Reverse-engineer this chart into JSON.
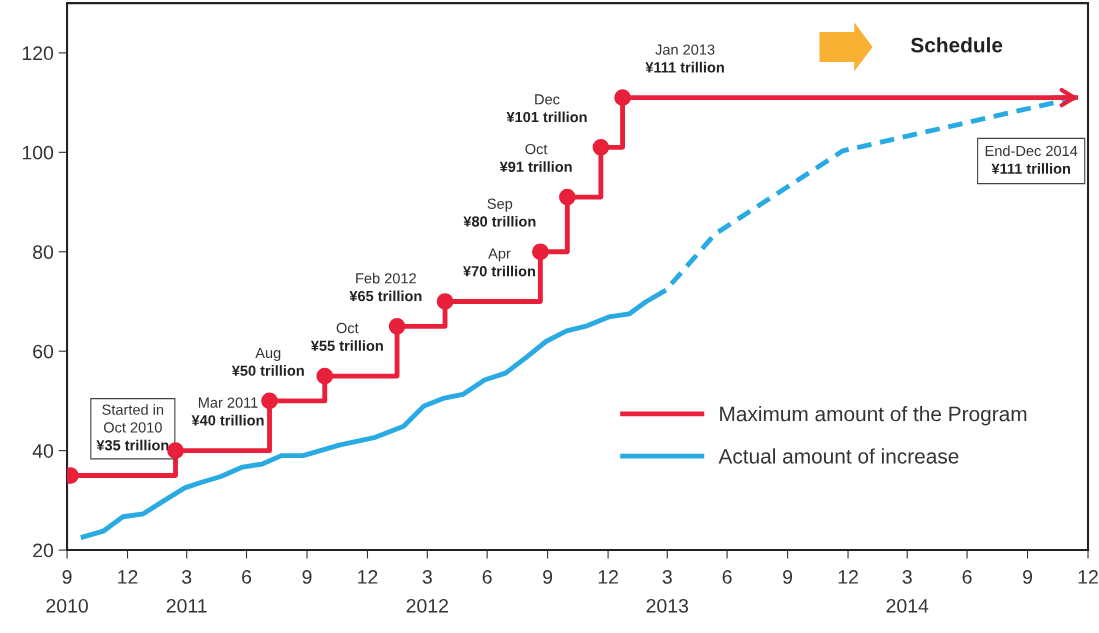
{
  "chart_data": {
    "type": "line",
    "xlim": [
      "2010-09-30",
      "2014-12-31"
    ],
    "xticks": [
      {
        "value": "2010-09-30",
        "label": "9"
      },
      {
        "value": "2010-12-31",
        "label": "12"
      },
      {
        "value": "2011-03-31",
        "label": "3"
      },
      {
        "value": "2011-06-30",
        "label": "6"
      },
      {
        "value": "2011-09-30",
        "label": "9"
      },
      {
        "value": "2011-12-31",
        "label": "12"
      },
      {
        "value": "2012-03-31",
        "label": "3"
      },
      {
        "value": "2012-06-30",
        "label": "6"
      },
      {
        "value": "2012-09-30",
        "label": "9"
      },
      {
        "value": "2012-12-31",
        "label": "12"
      },
      {
        "value": "2013-03-31",
        "label": "3"
      },
      {
        "value": "2013-06-30",
        "label": "6"
      },
      {
        "value": "2013-09-30",
        "label": "9"
      },
      {
        "value": "2013-12-31",
        "label": "12"
      },
      {
        "value": "2014-03-31",
        "label": "3"
      },
      {
        "value": "2014-06-30",
        "label": "6"
      },
      {
        "value": "2014-09-30",
        "label": "9"
      },
      {
        "value": "2014-12-31",
        "label": "12"
      }
    ],
    "ylim": [
      20,
      130
    ],
    "yticks": [
      20,
      40,
      60,
      80,
      100,
      120
    ],
    "grid": false,
    "legend": "bottom right",
    "series": [
      {
        "name": "Maximum amount of the Program",
        "type": "step",
        "color": "#e8203a",
        "marker": "circle",
        "x": [
          "2010-10-05",
          "2011-03-14",
          "2011-08-04",
          "2011-10-27",
          "2012-02-14",
          "2012-04-27",
          "2012-09-19",
          "2012-10-30",
          "2012-12-20",
          "2013-01-22",
          "2014-12-16"
        ],
        "values": [
          35,
          40,
          50,
          55,
          65,
          70,
          80,
          91,
          101,
          111,
          111
        ]
      },
      {
        "name": "Actual amount of increase",
        "type": "line",
        "color": "#2aaae2",
        "line_style": "solid",
        "x": [
          "2010-10-21",
          "2010-11-24",
          "2010-12-24",
          "2011-01-24",
          "2011-02-24",
          "2011-03-28",
          "2011-04-24",
          "2011-05-22",
          "2011-06-24",
          "2011-07-24",
          "2011-08-22",
          "2011-09-24",
          "2011-11-18",
          "2012-01-10",
          "2012-02-24",
          "2012-03-26",
          "2012-04-24",
          "2012-05-24",
          "2012-06-26",
          "2012-07-28",
          "2012-08-29",
          "2012-09-28",
          "2012-10-29",
          "2012-11-29",
          "2013-01-01",
          "2013-02-01",
          "2013-02-26",
          "2013-03-29"
        ],
        "values": [
          22.5,
          23.8,
          26.7,
          27.3,
          29.9,
          32.5,
          33.7,
          34.8,
          36.7,
          37.3,
          39.0,
          39.0,
          41.1,
          42.6,
          44.9,
          49.0,
          50.5,
          51.3,
          54.2,
          55.6,
          58.8,
          62.0,
          64.1,
          65.1,
          66.9,
          67.5,
          69.9,
          72.3
        ]
      },
      {
        "color": "#2aaae2",
        "line_style": "dashed",
        "x": [
          "2013-03-29",
          "2013-06-12",
          "2013-12-23",
          "2014-12-13"
        ],
        "values": [
          72.3,
          83.6,
          100.3,
          111
        ]
      }
    ],
    "annotations": [
      {
        "text": "Started in\nOct 2010\n¥35 trillion",
        "x": "2010-10-05",
        "y": 35
      },
      {
        "text": "Mar 2011\n¥40 trillion",
        "x": "2011-03-14",
        "y": 40
      },
      {
        "text": "Aug\n¥50 trillion",
        "x": "2011-08-04",
        "y": 50
      },
      {
        "text": "Oct\n¥55 trillion",
        "x": "2011-10-27",
        "y": 55
      },
      {
        "text": "Feb 2012\n¥65 trillion",
        "x": "2012-02-14",
        "y": 65
      },
      {
        "text": "Apr\n¥70 trillion",
        "x": "2012-04-27",
        "y": 70
      },
      {
        "text": "Sep\n¥80 trillion",
        "x": "2012-09-19",
        "y": 80
      },
      {
        "text": "Oct\n¥91 trillion",
        "x": "2012-10-30",
        "y": 91
      },
      {
        "text": "Dec\n¥101 trillion",
        "x": "2012-12-20",
        "y": 101
      },
      {
        "text": "Jan 2013\n¥111 trillion",
        "x": "2013-01-22",
        "y": 111
      },
      "End-Dec 2014\n¥111 trillion",
      "Schedule",
      "2010",
      "2011",
      "2012",
      "2013",
      "2014"
    ]
  }
}
